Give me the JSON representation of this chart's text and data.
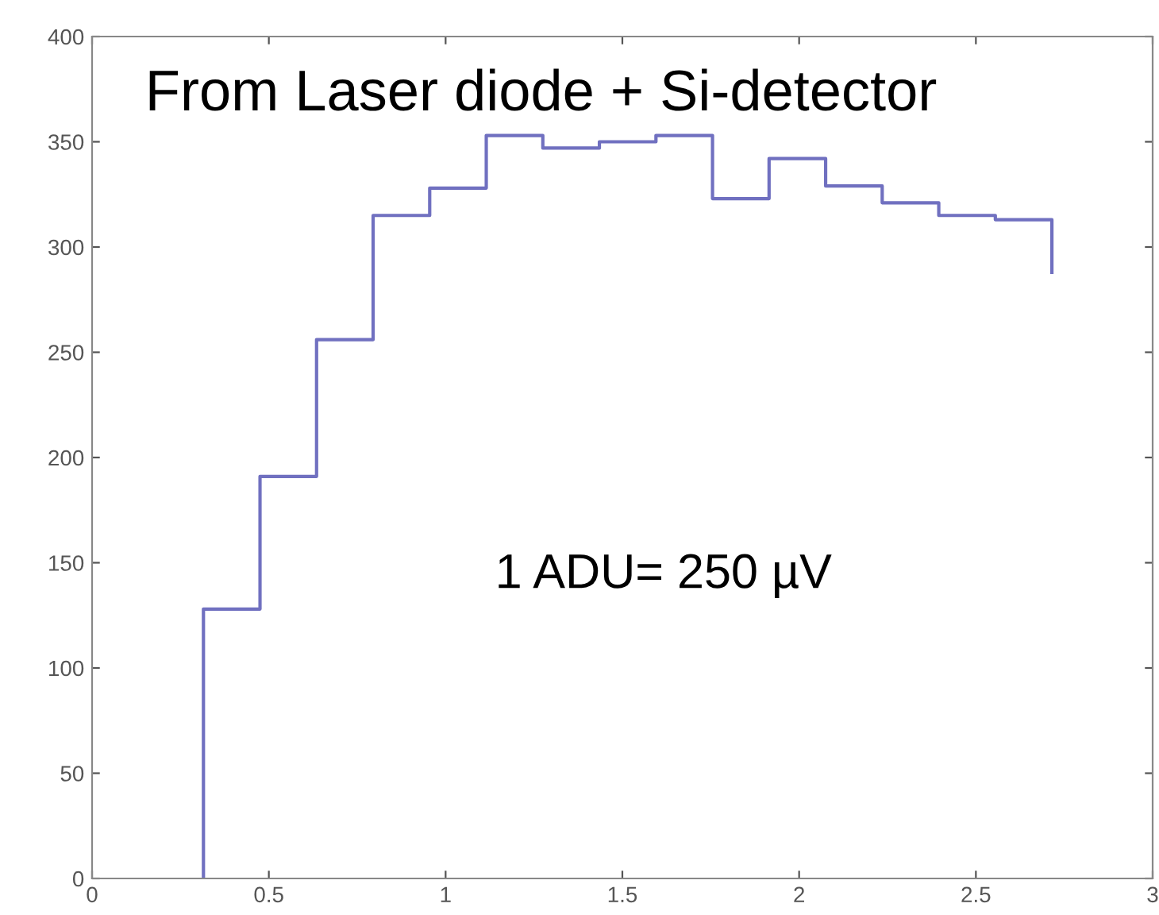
{
  "chart_data": {
    "type": "step",
    "x": [
      0.315,
      0.315,
      0.475,
      0.635,
      0.795,
      0.955,
      1.115,
      1.275,
      1.435,
      1.595,
      1.755,
      1.915,
      2.075,
      2.235,
      2.395,
      2.555,
      2.715
    ],
    "series": [
      {
        "color": "#7070c0",
        "values": [
          0,
          128,
          191,
          256,
          315,
          328,
          353,
          347,
          350,
          353,
          323,
          342,
          329,
          321,
          315,
          313,
          288
        ]
      }
    ],
    "xlim": [
      0,
      3
    ],
    "ylim": [
      0,
      400
    ],
    "xticks": [
      0,
      0.5,
      1,
      1.5,
      2,
      2.5,
      3
    ],
    "yticks": [
      0,
      50,
      100,
      150,
      200,
      250,
      300,
      350,
      400
    ],
    "grid": false,
    "annotations": [
      "From Laser diode + Si-detector",
      "1 ADU= 250 µV"
    ]
  }
}
